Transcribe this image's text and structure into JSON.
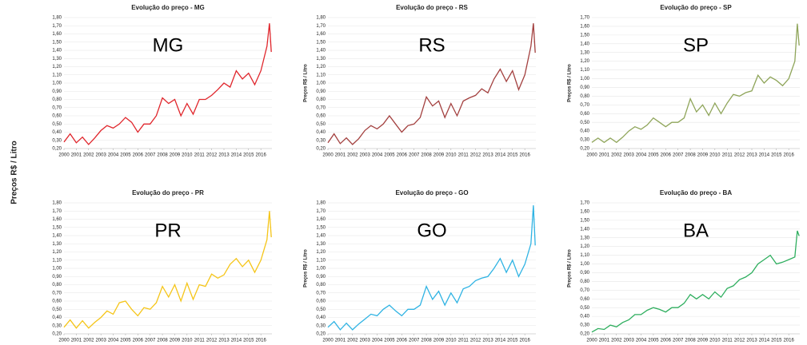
{
  "page_ylabel": "Preços R$ / Litro",
  "chart_data": [
    {
      "type": "line",
      "title": "Evolução do preço - MG",
      "annotation": "MG",
      "series": [
        {
          "name": "MG",
          "color": "#e0262c",
          "x": [
            2000,
            2000.5,
            2001,
            2001.5,
            2002,
            2002.5,
            2003,
            2003.5,
            2004,
            2004.5,
            2005,
            2005.5,
            2006,
            2006.5,
            2007,
            2007.5,
            2008,
            2008.5,
            2009,
            2009.5,
            2010,
            2010.5,
            2011,
            2011.5,
            2012,
            2012.5,
            2013,
            2013.5,
            2014,
            2014.5,
            2015,
            2015.5,
            2016,
            2016.5,
            2016.7,
            2016.85
          ],
          "values": [
            0.28,
            0.38,
            0.27,
            0.34,
            0.25,
            0.33,
            0.42,
            0.48,
            0.45,
            0.5,
            0.58,
            0.52,
            0.4,
            0.5,
            0.5,
            0.6,
            0.82,
            0.75,
            0.8,
            0.6,
            0.75,
            0.62,
            0.8,
            0.8,
            0.85,
            0.92,
            1.0,
            0.95,
            1.15,
            1.05,
            1.12,
            0.98,
            1.15,
            1.45,
            1.73,
            1.38
          ]
        }
      ],
      "xlim": [
        2000,
        2016.9
      ],
      "xticks": [
        2000,
        2001,
        2002,
        2003,
        2004,
        2005,
        2006,
        2007,
        2008,
        2009,
        2010,
        2011,
        2012,
        2013,
        2014,
        2015,
        2016
      ],
      "ylim": [
        0.2,
        1.8
      ],
      "yticks": [
        {
          "value": 0.2,
          "label": "0,20"
        },
        {
          "value": 0.3,
          "label": "0,30"
        },
        {
          "value": 0.4,
          "label": "0,40"
        },
        {
          "value": 0.5,
          "label": "0,50"
        },
        {
          "value": 0.6,
          "label": "0,60"
        },
        {
          "value": 0.7,
          "label": "0,70"
        },
        {
          "value": 0.8,
          "label": "0,80"
        },
        {
          "value": 0.9,
          "label": "0,90"
        },
        {
          "value": 1.0,
          "label": "1,00"
        },
        {
          "value": 1.1,
          "label": "1,10"
        },
        {
          "value": 1.2,
          "label": "1,20"
        },
        {
          "value": 1.3,
          "label": "1,30"
        },
        {
          "value": 1.4,
          "label": "1,40"
        },
        {
          "value": 1.5,
          "label": "1,50"
        },
        {
          "value": 1.6,
          "label": "1,60"
        },
        {
          "value": 1.7,
          "label": "1,70"
        },
        {
          "value": 1.8,
          "label": "1,80"
        }
      ]
    },
    {
      "type": "line",
      "title": "Evolução do preço - RS",
      "annotation": "RS",
      "ylabel": "Preços R$ / Litro",
      "series": [
        {
          "name": "RS",
          "color": "#a3403f",
          "x": [
            2000,
            2000.5,
            2001,
            2001.5,
            2002,
            2002.5,
            2003,
            2003.5,
            2004,
            2004.5,
            2005,
            2005.5,
            2006,
            2006.5,
            2007,
            2007.5,
            2008,
            2008.5,
            2009,
            2009.5,
            2010,
            2010.5,
            2011,
            2011.5,
            2012,
            2012.5,
            2013,
            2013.5,
            2014,
            2014.5,
            2015,
            2015.5,
            2016,
            2016.5,
            2016.7,
            2016.85
          ],
          "values": [
            0.27,
            0.38,
            0.26,
            0.33,
            0.25,
            0.32,
            0.42,
            0.48,
            0.44,
            0.5,
            0.6,
            0.5,
            0.4,
            0.48,
            0.5,
            0.58,
            0.83,
            0.72,
            0.78,
            0.58,
            0.75,
            0.6,
            0.78,
            0.82,
            0.85,
            0.93,
            0.88,
            1.05,
            1.17,
            1.02,
            1.15,
            0.92,
            1.1,
            1.45,
            1.73,
            1.37
          ]
        }
      ],
      "xlim": [
        2000,
        2016.9
      ],
      "xticks": [
        2000,
        2001,
        2002,
        2003,
        2004,
        2005,
        2006,
        2007,
        2008,
        2009,
        2010,
        2011,
        2012,
        2013,
        2014,
        2015,
        2016
      ],
      "ylim": [
        0.2,
        1.8
      ],
      "yticks": [
        {
          "value": 0.2,
          "label": "0,20"
        },
        {
          "value": 0.3,
          "label": "0,30"
        },
        {
          "value": 0.4,
          "label": "0,40"
        },
        {
          "value": 0.5,
          "label": "0,50"
        },
        {
          "value": 0.6,
          "label": "0,60"
        },
        {
          "value": 0.7,
          "label": "0,70"
        },
        {
          "value": 0.8,
          "label": "0,80"
        },
        {
          "value": 0.9,
          "label": "0,90"
        },
        {
          "value": 1.0,
          "label": "1,00"
        },
        {
          "value": 1.1,
          "label": "1,10"
        },
        {
          "value": 1.2,
          "label": "1,20"
        },
        {
          "value": 1.3,
          "label": "1,30"
        },
        {
          "value": 1.4,
          "label": "1,40"
        },
        {
          "value": 1.5,
          "label": "1,50"
        },
        {
          "value": 1.6,
          "label": "1,60"
        },
        {
          "value": 1.7,
          "label": "1,70"
        },
        {
          "value": 1.8,
          "label": "1,80"
        }
      ]
    },
    {
      "type": "line",
      "title": "Evolução do preço - SP",
      "annotation": "SP",
      "ylabel": "Preços R$ / Litro",
      "series": [
        {
          "name": "SP",
          "color": "#8fa55a",
          "x": [
            2000,
            2000.5,
            2001,
            2001.5,
            2002,
            2002.5,
            2003,
            2003.5,
            2004,
            2004.5,
            2005,
            2005.5,
            2006,
            2006.5,
            2007,
            2007.5,
            2008,
            2008.5,
            2009,
            2009.5,
            2010,
            2010.5,
            2011,
            2011.5,
            2012,
            2012.5,
            2013,
            2013.5,
            2014,
            2014.5,
            2015,
            2015.5,
            2016,
            2016.5,
            2016.7,
            2016.85
          ],
          "values": [
            0.27,
            0.32,
            0.27,
            0.32,
            0.27,
            0.33,
            0.4,
            0.45,
            0.42,
            0.47,
            0.55,
            0.5,
            0.45,
            0.5,
            0.5,
            0.55,
            0.77,
            0.62,
            0.7,
            0.58,
            0.72,
            0.6,
            0.72,
            0.82,
            0.8,
            0.84,
            0.86,
            1.04,
            0.95,
            1.02,
            0.98,
            0.92,
            1.0,
            1.2,
            1.63,
            1.38
          ]
        }
      ],
      "xlim": [
        2000,
        2016.9
      ],
      "xticks": [
        2000,
        2001,
        2002,
        2003,
        2004,
        2005,
        2006,
        2007,
        2008,
        2009,
        2010,
        2011,
        2012,
        2013,
        2014,
        2015,
        2016
      ],
      "ylim": [
        0.2,
        1.7
      ],
      "yticks": [
        {
          "value": 0.2,
          "label": "0,20"
        },
        {
          "value": 0.3,
          "label": "0,30"
        },
        {
          "value": 0.4,
          "label": "0,40"
        },
        {
          "value": 0.5,
          "label": "0,50"
        },
        {
          "value": 0.6,
          "label": "0,60"
        },
        {
          "value": 0.7,
          "label": "0,70"
        },
        {
          "value": 0.8,
          "label": "0,80"
        },
        {
          "value": 0.9,
          "label": "0,90"
        },
        {
          "value": 1.0,
          "label": "1,00"
        },
        {
          "value": 1.1,
          "label": "1,10"
        },
        {
          "value": 1.2,
          "label": "1,20"
        },
        {
          "value": 1.3,
          "label": "1,30"
        },
        {
          "value": 1.4,
          "label": "1,40"
        },
        {
          "value": 1.5,
          "label": "1,50"
        },
        {
          "value": 1.6,
          "label": "1,60"
        },
        {
          "value": 1.7,
          "label": "1,70"
        }
      ]
    },
    {
      "type": "line",
      "title": "Evolução do preço - PR",
      "annotation": "PR",
      "series": [
        {
          "name": "PR",
          "color": "#f5c518",
          "x": [
            2000,
            2000.5,
            2001,
            2001.5,
            2002,
            2002.5,
            2003,
            2003.5,
            2004,
            2004.5,
            2005,
            2005.5,
            2006,
            2006.5,
            2007,
            2007.5,
            2008,
            2008.5,
            2009,
            2009.5,
            2010,
            2010.5,
            2011,
            2011.5,
            2012,
            2012.5,
            2013,
            2013.5,
            2014,
            2014.5,
            2015,
            2015.5,
            2016,
            2016.5,
            2016.7,
            2016.85
          ],
          "values": [
            0.28,
            0.37,
            0.27,
            0.36,
            0.27,
            0.34,
            0.4,
            0.48,
            0.44,
            0.58,
            0.6,
            0.5,
            0.42,
            0.52,
            0.5,
            0.58,
            0.78,
            0.65,
            0.8,
            0.6,
            0.82,
            0.62,
            0.8,
            0.78,
            0.93,
            0.88,
            0.92,
            1.05,
            1.12,
            1.02,
            1.1,
            0.95,
            1.1,
            1.35,
            1.7,
            1.38
          ]
        }
      ],
      "xlim": [
        2000,
        2016.9
      ],
      "xticks": [
        2000,
        2001,
        2002,
        2003,
        2004,
        2005,
        2006,
        2007,
        2008,
        2009,
        2010,
        2011,
        2012,
        2013,
        2014,
        2015,
        2016
      ],
      "ylim": [
        0.2,
        1.8
      ],
      "yticks": [
        {
          "value": 0.2,
          "label": "0,20"
        },
        {
          "value": 0.3,
          "label": "0,30"
        },
        {
          "value": 0.4,
          "label": "0,40"
        },
        {
          "value": 0.5,
          "label": "0,50"
        },
        {
          "value": 0.6,
          "label": "0,60"
        },
        {
          "value": 0.7,
          "label": "0,70"
        },
        {
          "value": 0.8,
          "label": "0,80"
        },
        {
          "value": 0.9,
          "label": "0,90"
        },
        {
          "value": 1.0,
          "label": "1,00"
        },
        {
          "value": 1.1,
          "label": "1,10"
        },
        {
          "value": 1.2,
          "label": "1,20"
        },
        {
          "value": 1.3,
          "label": "1,30"
        },
        {
          "value": 1.4,
          "label": "1,40"
        },
        {
          "value": 1.5,
          "label": "1,50"
        },
        {
          "value": 1.6,
          "label": "1,60"
        },
        {
          "value": 1.7,
          "label": "1,70"
        },
        {
          "value": 1.8,
          "label": "1,80"
        }
      ]
    },
    {
      "type": "line",
      "title": "Evolução do preço - GO",
      "annotation": "GO",
      "ylabel": "Preços R$ / Litro",
      "series": [
        {
          "name": "GO",
          "color": "#2fb3e3",
          "x": [
            2000,
            2000.5,
            2001,
            2001.5,
            2002,
            2002.5,
            2003,
            2003.5,
            2004,
            2004.5,
            2005,
            2005.5,
            2006,
            2006.5,
            2007,
            2007.5,
            2008,
            2008.5,
            2009,
            2009.5,
            2010,
            2010.5,
            2011,
            2011.5,
            2012,
            2012.5,
            2013,
            2013.5,
            2014,
            2014.5,
            2015,
            2015.5,
            2016,
            2016.5,
            2016.7,
            2016.85
          ],
          "values": [
            0.28,
            0.35,
            0.25,
            0.33,
            0.25,
            0.32,
            0.38,
            0.44,
            0.42,
            0.5,
            0.55,
            0.48,
            0.42,
            0.5,
            0.5,
            0.55,
            0.78,
            0.62,
            0.72,
            0.55,
            0.7,
            0.58,
            0.75,
            0.78,
            0.85,
            0.88,
            0.9,
            1.0,
            1.12,
            0.95,
            1.1,
            0.9,
            1.05,
            1.3,
            1.77,
            1.28
          ]
        }
      ],
      "xlim": [
        2000,
        2016.9
      ],
      "xticks": [
        2000,
        2001,
        2002,
        2003,
        2004,
        2005,
        2006,
        2007,
        2008,
        2009,
        2010,
        2011,
        2012,
        2013,
        2014,
        2015,
        2016
      ],
      "ylim": [
        0.2,
        1.8
      ],
      "yticks": [
        {
          "value": 0.2,
          "label": "0,20"
        },
        {
          "value": 0.3,
          "label": "0,30"
        },
        {
          "value": 0.4,
          "label": "0,40"
        },
        {
          "value": 0.5,
          "label": "0,50"
        },
        {
          "value": 0.6,
          "label": "0,60"
        },
        {
          "value": 0.7,
          "label": "0,70"
        },
        {
          "value": 0.8,
          "label": "0,80"
        },
        {
          "value": 0.9,
          "label": "0,90"
        },
        {
          "value": 1.0,
          "label": "1,00"
        },
        {
          "value": 1.1,
          "label": "1,10"
        },
        {
          "value": 1.2,
          "label": "1,20"
        },
        {
          "value": 1.3,
          "label": "1,30"
        },
        {
          "value": 1.4,
          "label": "1,40"
        },
        {
          "value": 1.5,
          "label": "1,50"
        },
        {
          "value": 1.6,
          "label": "1,60"
        },
        {
          "value": 1.7,
          "label": "1,70"
        },
        {
          "value": 1.8,
          "label": "1,80"
        }
      ]
    },
    {
      "type": "line",
      "title": "Evolução do preço - BA",
      "annotation": "BA",
      "ylabel": "Preços R$ / Litro",
      "series": [
        {
          "name": "BA",
          "color": "#2eae5e",
          "x": [
            2000,
            2000.5,
            2001,
            2001.5,
            2002,
            2002.5,
            2003,
            2003.5,
            2004,
            2004.5,
            2005,
            2005.5,
            2006,
            2006.5,
            2007,
            2007.5,
            2008,
            2008.5,
            2009,
            2009.5,
            2010,
            2010.5,
            2011,
            2011.5,
            2012,
            2012.5,
            2013,
            2013.5,
            2014,
            2014.5,
            2015,
            2015.5,
            2016,
            2016.5,
            2016.7,
            2016.85
          ],
          "values": [
            0.22,
            0.26,
            0.25,
            0.3,
            0.28,
            0.33,
            0.36,
            0.42,
            0.42,
            0.47,
            0.5,
            0.48,
            0.45,
            0.5,
            0.5,
            0.55,
            0.65,
            0.6,
            0.65,
            0.6,
            0.68,
            0.62,
            0.72,
            0.75,
            0.82,
            0.85,
            0.9,
            1.0,
            1.05,
            1.1,
            1.0,
            1.02,
            1.05,
            1.08,
            1.38,
            1.32
          ]
        }
      ],
      "xlim": [
        2000,
        2016.9
      ],
      "xticks": [
        2000,
        2001,
        2002,
        2003,
        2004,
        2005,
        2006,
        2007,
        2008,
        2009,
        2010,
        2011,
        2012,
        2013,
        2014,
        2015,
        2016
      ],
      "ylim": [
        0.2,
        1.7
      ],
      "yticks": [
        {
          "value": 0.2,
          "label": "0,20"
        },
        {
          "value": 0.3,
          "label": "0,30"
        },
        {
          "value": 0.4,
          "label": "0,40"
        },
        {
          "value": 0.5,
          "label": "0,50"
        },
        {
          "value": 0.6,
          "label": "0,60"
        },
        {
          "value": 0.7,
          "label": "0,70"
        },
        {
          "value": 0.8,
          "label": "0,80"
        },
        {
          "value": 0.9,
          "label": "0,90"
        },
        {
          "value": 1.0,
          "label": "1,00"
        },
        {
          "value": 1.1,
          "label": "1,10"
        },
        {
          "value": 1.2,
          "label": "1,20"
        },
        {
          "value": 1.3,
          "label": "1,30"
        },
        {
          "value": 1.4,
          "label": "1,40"
        },
        {
          "value": 1.5,
          "label": "1,50"
        },
        {
          "value": 1.6,
          "label": "1,60"
        },
        {
          "value": 1.7,
          "label": "1,70"
        }
      ]
    }
  ]
}
